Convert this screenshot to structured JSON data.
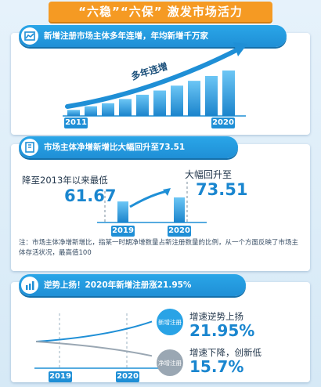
{
  "title": "“六稳”“六保” 激发市场活力",
  "sections": [
    {
      "heading": "新增注册市场主体多年连增，年均新增千万家",
      "icon": "chart-icon",
      "arrow_label": "多年连增",
      "year_start": "2011",
      "year_end": "2020"
    },
    {
      "heading": "市场主体净增新增比大幅回升至73.51",
      "icon": "building-icon",
      "left_caption": "降至2013年以来最低",
      "left_value": "61.67",
      "right_caption": "大幅回升至",
      "right_value": "73.51",
      "year_a": "2019",
      "year_b": "2020",
      "note": "注：市场主体净增新增比，指某一时期净增数量占新注册数量的比例，从一个方面反映了市场主体存活状况，最高值100"
    },
    {
      "heading": "逆势上扬！2020年新增注册涨21.95%",
      "icon": "trend-icon",
      "up_bubble": "新增注册",
      "up_caption": "增速逆势上扬",
      "up_value": "21.95%",
      "down_bubble": "净增注册",
      "down_caption": "增速下降，创新低",
      "down_value": "15.7%",
      "year_a": "2019",
      "year_b": "2020"
    }
  ],
  "chart_data": [
    {
      "type": "bar",
      "title": "新增注册市场主体多年连增，年均新增千万家",
      "categories": [
        "2011",
        "",
        "",
        "",
        "",
        "",
        "",
        "",
        "",
        "2020"
      ],
      "values": [
        1,
        1.6,
        2.1,
        2.8,
        3.5,
        4.2,
        5.0,
        5.8,
        6.6,
        7.5
      ]
    },
    {
      "type": "bar",
      "title": "市场主体净增新增比大幅回升至73.51",
      "categories": [
        "2019",
        "2020"
      ],
      "values": [
        61.67,
        73.51
      ]
    },
    {
      "type": "line",
      "title": "逆势上扬！2020年新增注册涨21.95%",
      "x": [
        "2019",
        "2020"
      ],
      "series": [
        {
          "name": "新增注册",
          "values": [
            0,
            21.95
          ]
        },
        {
          "name": "净增注册",
          "values": [
            0,
            15.7
          ]
        }
      ]
    }
  ],
  "colors": {
    "accent": "#1f8fd6",
    "title_bg": "#f59a23",
    "text": "#24384d"
  }
}
